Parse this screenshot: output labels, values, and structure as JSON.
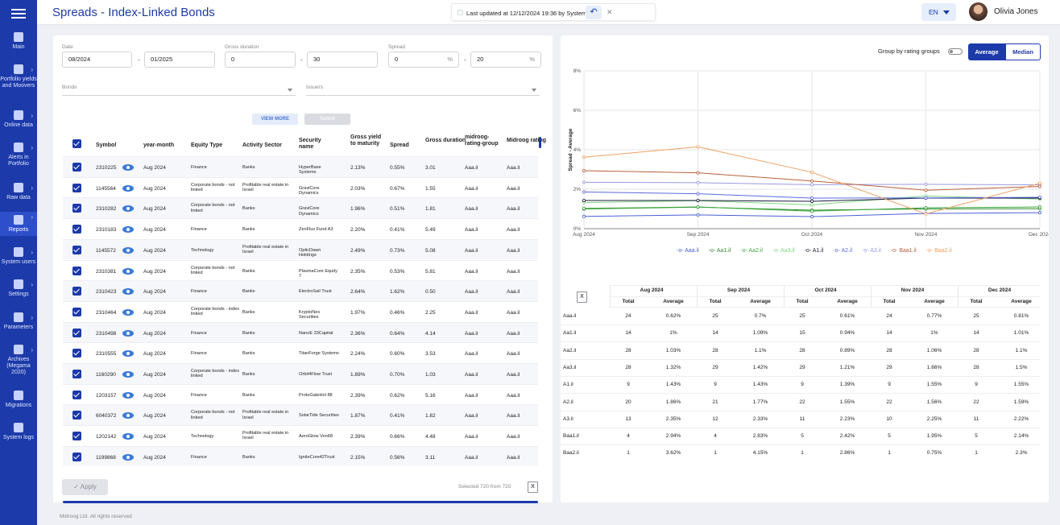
{
  "header": {
    "title": "Spreads - Index-Linked Bonds",
    "last_updated": "Last updated at 12/12/2024 19:36 by System",
    "lang": "EN",
    "user": "Olivia Jones"
  },
  "nav": [
    {
      "label": "Main",
      "icon": "grid-icon",
      "chev": false
    },
    {
      "label": "Portfolio yields and Moovers",
      "icon": "briefcase-icon",
      "chev": true
    },
    {
      "label": "Online data",
      "icon": "broadcast-icon",
      "chev": true
    },
    {
      "label": "Alerts in Portfolio",
      "icon": "alert-icon",
      "chev": true
    },
    {
      "label": "Raw data",
      "icon": "clipboard-icon",
      "chev": true
    },
    {
      "label": "Reports",
      "icon": "reports-icon",
      "chev": true
    },
    {
      "label": "System users",
      "icon": "users-icon",
      "chev": true
    },
    {
      "label": "Settings",
      "icon": "gear-icon",
      "chev": true
    },
    {
      "label": "Parameters",
      "icon": "parameters-icon",
      "chev": true
    },
    {
      "label": "Archives (Megama 2020)",
      "icon": "archive-icon",
      "chev": true
    },
    {
      "label": "Migrations",
      "icon": "globe-icon",
      "chev": false
    },
    {
      "label": "System logs",
      "icon": "log-icon",
      "chev": false
    }
  ],
  "filters": {
    "date_label": "Date",
    "date_from": "08/2024",
    "date_to": "01/2025",
    "gross_label": "Gross duration",
    "gross_from": "0",
    "gross_to": "30",
    "spread_label": "Spread",
    "spread_from": "0",
    "spread_to": "20",
    "pct": "%",
    "bonds_ph": "Bonds",
    "issuers_ph": "Issuers",
    "view_more": "VIEW MORE",
    "submit": "Submit",
    "apply": "Apply",
    "selected": "Selected 720 from 720"
  },
  "table": {
    "headers": [
      "Symbol",
      "year-month",
      "Equity Type",
      "Activity Sector",
      "Security name",
      "Gross yield to maturity",
      "Spread",
      "Gross duration",
      "midroog-rating-group",
      "Midroog rating"
    ],
    "rows": [
      [
        "2310225",
        "Aug 2024",
        "Finance",
        "Banks",
        "HyperBase Systems",
        "2.13%",
        "0.55%",
        "3.01",
        "Aaa.il",
        "Aaa.il"
      ],
      [
        "1145564",
        "Aug 2024",
        "Corporate bonds - not linked",
        "Profitable real estate in Israel",
        "GraviCore Dynamics",
        "2.03%",
        "0.67%",
        "1.55",
        "Aaa.il",
        "Aaa.il"
      ],
      [
        "2310282",
        "Aug 2024",
        "Corporate bonds - not linked",
        "Banks",
        "GraviCore Dynamics",
        "1.96%",
        "0.51%",
        "1.81",
        "Aaa.il",
        "Aaa.il"
      ],
      [
        "2310183",
        "Aug 2024",
        "Finance",
        "Banks",
        "ZenFlux Fund A3",
        "2.20%",
        "0.41%",
        "5.49",
        "Aaa.il",
        "Aaa.il"
      ],
      [
        "1145572",
        "Aug 2024",
        "Technology",
        "Profitable real estate in Israel",
        "OpticDawn Holdings",
        "2.49%",
        "0.73%",
        "5.08",
        "Aaa.il",
        "Aaa.il"
      ],
      [
        "2310381",
        "Aug 2024",
        "Corporate bonds - not linked",
        "Banks",
        "PlasmaCore Equity 7",
        "2.35%",
        "0.53%",
        "5.81",
        "Aaa.il",
        "Aaa.il"
      ],
      [
        "2310423",
        "Aug 2024",
        "Finance",
        "Banks",
        "ElectroSail Trust",
        "2.64%",
        "1.62%",
        "0.50",
        "Aaa.il",
        "Aaa.il"
      ],
      [
        "2310464",
        "Aug 2024",
        "Corporate bonds - index linked",
        "Banks",
        "KryptoNex Securities",
        "1.97%",
        "0.46%",
        "2.25",
        "Aaa.il",
        "Aaa.il"
      ],
      [
        "2310498",
        "Aug 2024",
        "Finance",
        "Banks",
        "NanoE 33Capital",
        "2.36%",
        "0.64%",
        "4.14",
        "Aaa.il",
        "Aaa.il"
      ],
      [
        "2310555",
        "Aug 2024",
        "Finance",
        "Banks",
        "TitanForge Systems",
        "2.24%",
        "0.60%",
        "3.53",
        "Aaa.il",
        "Aaa.il"
      ],
      [
        "1160290",
        "Aug 2024",
        "Corporate bonds - index linked",
        "Banks",
        "Orbit4Flow Trust",
        "1.89%",
        "0.70%",
        "1.03",
        "Aaa.il",
        "Aaa.il"
      ],
      [
        "1203157",
        "Aug 2024",
        "Finance",
        "Banks",
        "ProtoGateHol 88",
        "2.39%",
        "0.62%",
        "5.16",
        "Aaa.il",
        "Aaa.il"
      ],
      [
        "6040372",
        "Aug 2024",
        "Corporate bonds - not linked",
        "Profitable real estate in Israel",
        "SolarTide Securities",
        "1.87%",
        "0.41%",
        "1.82",
        "Aaa.il",
        "Aaa.il"
      ],
      [
        "1202142",
        "Aug 2024",
        "Technology",
        "Profitable real estate in Israel",
        "AeroGlow Ven68",
        "2.39%",
        "0.66%",
        "4.48",
        "Aaa.il",
        "Aaa.il"
      ],
      [
        "1199868",
        "Aug 2024",
        "Finance",
        "Banks",
        "IgniteCore42Trust",
        "2.15%",
        "0.56%",
        "3.11",
        "Aaa.il",
        "Aaa.il"
      ]
    ]
  },
  "chart_controls": {
    "group_label": "Group by rating groups",
    "average": "Average",
    "median": "Median"
  },
  "chart_data": {
    "type": "line",
    "ylabel": "Spread - Average",
    "categories": [
      "Aug 2024",
      "Sep 2024",
      "Oct 2024",
      "Nov 2024",
      "Dec 2024"
    ],
    "y_ticks": [
      "0%",
      "2%",
      "4%",
      "6%",
      "8%"
    ],
    "ylim": [
      0,
      8
    ],
    "grid": true,
    "legend_position": "bottom",
    "series": [
      {
        "name": "Aaa.il",
        "color": "#4a5fd6",
        "values": [
          0.62,
          0.7,
          0.61,
          0.77,
          0.81
        ]
      },
      {
        "name": "Aa1.il",
        "color": "#2e8b2e",
        "values": [
          1.0,
          1.09,
          0.94,
          1.0,
          1.01
        ]
      },
      {
        "name": "Aa2.il",
        "color": "#3ea83e",
        "values": [
          1.03,
          1.1,
          0.89,
          1.06,
          1.1
        ]
      },
      {
        "name": "Aa3.il",
        "color": "#7fd67f",
        "values": [
          1.32,
          1.42,
          1.21,
          1.66,
          1.5
        ]
      },
      {
        "name": "A1.il",
        "color": "#1a1a3a",
        "values": [
          1.43,
          1.43,
          1.39,
          1.55,
          1.55
        ]
      },
      {
        "name": "A2.il",
        "color": "#5a6adf",
        "values": [
          1.86,
          1.77,
          1.55,
          1.56,
          1.59
        ]
      },
      {
        "name": "A3.il",
        "color": "#9a9adf",
        "values": [
          2.35,
          2.33,
          2.23,
          2.25,
          2.22
        ]
      },
      {
        "name": "Baa1.il",
        "color": "#b8603a",
        "values": [
          2.94,
          2.83,
          2.42,
          1.95,
          2.14
        ]
      },
      {
        "name": "Baa2.il",
        "color": "#f0a060",
        "values": [
          3.62,
          4.15,
          2.86,
          0.75,
          2.3
        ]
      }
    ]
  },
  "summary": {
    "months": [
      "Aug 2024",
      "Sep 2024",
      "Oct 2024",
      "Nov 2024",
      "Dec 2024"
    ],
    "sub": [
      "Total",
      "Average"
    ],
    "rows": [
      {
        "r": "Aaa.il",
        "v": [
          [
            "24",
            "0.62%"
          ],
          [
            "25",
            "0.7%"
          ],
          [
            "25",
            "0.61%"
          ],
          [
            "24",
            "0.77%"
          ],
          [
            "25",
            "0.81%"
          ]
        ]
      },
      {
        "r": "Aa1.il",
        "v": [
          [
            "14",
            "1%"
          ],
          [
            "14",
            "1.09%"
          ],
          [
            "15",
            "0.94%"
          ],
          [
            "14",
            "1%"
          ],
          [
            "14",
            "1.01%"
          ]
        ]
      },
      {
        "r": "Aa2.il",
        "v": [
          [
            "28",
            "1.03%"
          ],
          [
            "28",
            "1.1%"
          ],
          [
            "28",
            "0.89%"
          ],
          [
            "28",
            "1.06%"
          ],
          [
            "28",
            "1.1%"
          ]
        ]
      },
      {
        "r": "Aa3.il",
        "v": [
          [
            "28",
            "1.32%"
          ],
          [
            "29",
            "1.42%"
          ],
          [
            "29",
            "1.21%"
          ],
          [
            "29",
            "1.66%"
          ],
          [
            "28",
            "1.5%"
          ]
        ]
      },
      {
        "r": "A1.il",
        "v": [
          [
            "9",
            "1.43%"
          ],
          [
            "9",
            "1.43%"
          ],
          [
            "9",
            "1.39%"
          ],
          [
            "9",
            "1.55%"
          ],
          [
            "9",
            "1.55%"
          ]
        ]
      },
      {
        "r": "A2.il",
        "v": [
          [
            "20",
            "1.86%"
          ],
          [
            "21",
            "1.77%"
          ],
          [
            "22",
            "1.55%"
          ],
          [
            "22",
            "1.56%"
          ],
          [
            "22",
            "1.59%"
          ]
        ]
      },
      {
        "r": "A3.il",
        "v": [
          [
            "13",
            "2.35%"
          ],
          [
            "12",
            "2.33%"
          ],
          [
            "11",
            "2.23%"
          ],
          [
            "10",
            "2.25%"
          ],
          [
            "11",
            "2.22%"
          ]
        ]
      },
      {
        "r": "Baa1.il",
        "v": [
          [
            "4",
            "2.94%"
          ],
          [
            "4",
            "2.83%"
          ],
          [
            "5",
            "2.42%"
          ],
          [
            "5",
            "1.95%"
          ],
          [
            "5",
            "2.14%"
          ]
        ]
      },
      {
        "r": "Baa2.il",
        "v": [
          [
            "1",
            "3.62%"
          ],
          [
            "1",
            "4.15%"
          ],
          [
            "1",
            "2.86%"
          ],
          [
            "1",
            "0.75%"
          ],
          [
            "1",
            "2.3%"
          ]
        ]
      }
    ]
  },
  "footer": "Midroog Ltd. All rights reserved"
}
